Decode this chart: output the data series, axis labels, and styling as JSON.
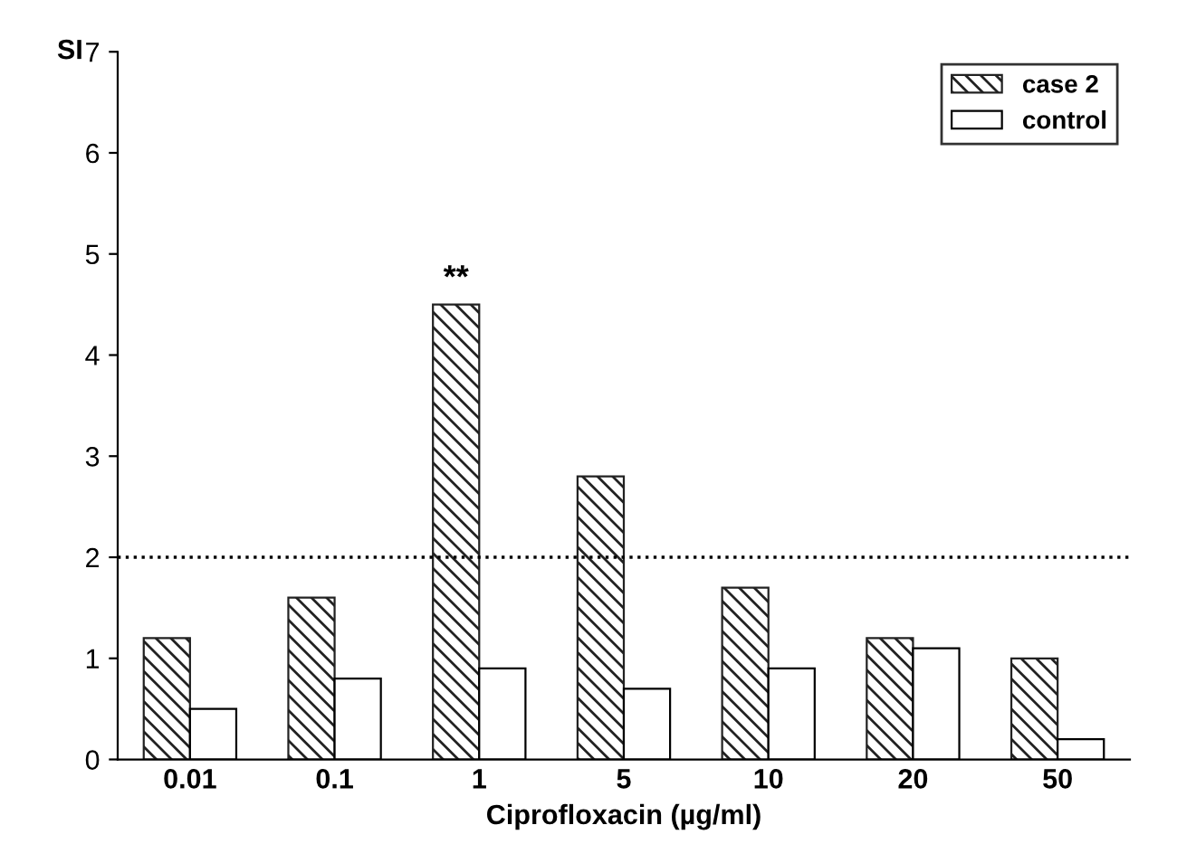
{
  "chart_data": {
    "type": "bar",
    "xlabel": "Ciprofloxacin (µg/ml)",
    "ylabel": "SI",
    "categories": [
      "0.01",
      "0.1",
      "1",
      "5",
      "10",
      "20",
      "50"
    ],
    "series": [
      {
        "name": "case 2",
        "color": "#222222",
        "values": [
          1.2,
          1.6,
          4.5,
          2.8,
          1.7,
          1.2,
          1.0
        ]
      },
      {
        "name": "control",
        "color": "#ffffff",
        "values": [
          0.5,
          0.8,
          0.9,
          0.7,
          0.9,
          1.1,
          0.2
        ]
      }
    ],
    "ylim": [
      0,
      7
    ],
    "yticks": [
      0,
      1,
      2,
      3,
      4,
      5,
      6,
      7
    ],
    "ref_lines": [
      {
        "axis": "y",
        "value": 2,
        "line_style": "dotted"
      }
    ],
    "annotations": [
      {
        "text": "**",
        "x": "1",
        "y": 4.5
      }
    ],
    "legend": "top right",
    "grid": false
  }
}
